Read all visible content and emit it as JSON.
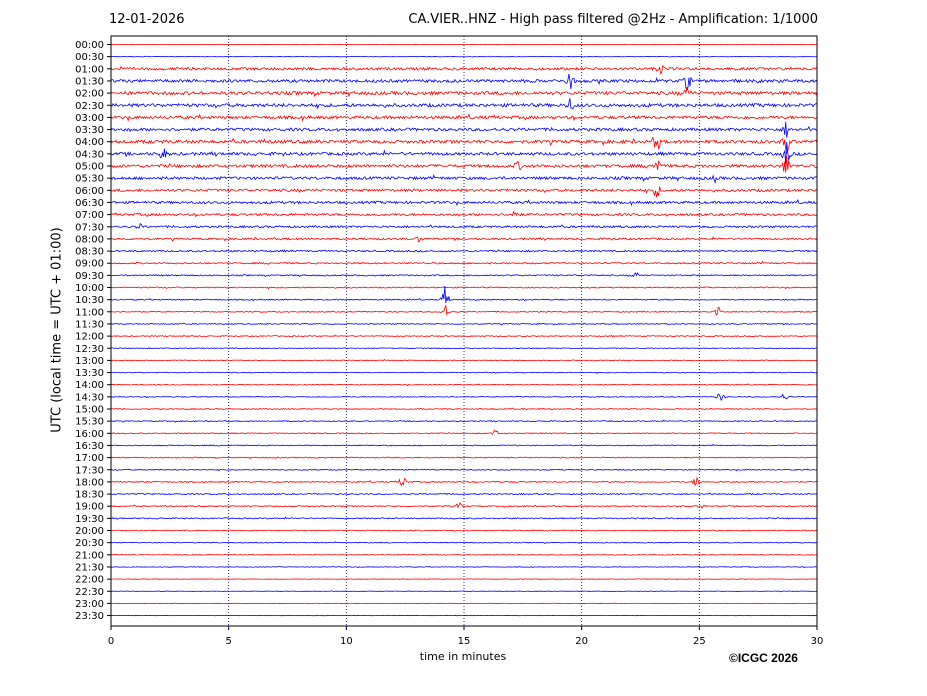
{
  "header": {
    "date": "12-01-2026",
    "title": "CA.VIER..HNZ - High pass filtered @2Hz - Amplification: 1/1000"
  },
  "footer": {
    "copyright": "©ICGC 2026"
  },
  "colors": {
    "red": "#ff0000",
    "blue": "#0000ff",
    "grid": "#000080"
  },
  "chart_data": {
    "type": "line",
    "title": "CA.VIER..HNZ - High pass filtered @2Hz - Amplification: 1/1000",
    "xlabel": "time in minutes",
    "ylabel": "UTC (local time = UTC + 01:00)",
    "xlim": [
      0,
      30
    ],
    "x_ticks": [
      0,
      5,
      10,
      15,
      20,
      25,
      30
    ],
    "grid": "vertical dotted at 5-minute ticks",
    "trace_colors": [
      "red",
      "blue"
    ],
    "rows": [
      "00:00",
      "00:30",
      "01:00",
      "01:30",
      "02:00",
      "02:30",
      "03:00",
      "03:30",
      "04:00",
      "04:30",
      "05:00",
      "05:30",
      "06:00",
      "06:30",
      "07:00",
      "07:30",
      "08:00",
      "08:30",
      "09:00",
      "09:30",
      "10:00",
      "10:30",
      "11:00",
      "11:30",
      "12:00",
      "12:30",
      "13:00",
      "13:30",
      "14:00",
      "14:30",
      "15:00",
      "15:30",
      "16:00",
      "16:30",
      "17:00",
      "17:30",
      "18:00",
      "18:30",
      "19:00",
      "19:30",
      "20:00",
      "20:30",
      "21:00",
      "21:30",
      "22:00",
      "22:30",
      "23:00",
      "23:30"
    ],
    "noise_level": [
      0.1,
      0.15,
      0.8,
      0.9,
      1.0,
      1.0,
      0.9,
      0.9,
      0.95,
      0.9,
      0.9,
      0.85,
      0.8,
      0.75,
      0.7,
      0.6,
      0.55,
      0.5,
      0.45,
      0.4,
      0.35,
      0.35,
      0.3,
      0.3,
      0.3,
      0.25,
      0.25,
      0.25,
      0.25,
      0.25,
      0.3,
      0.3,
      0.3,
      0.3,
      0.3,
      0.3,
      0.35,
      0.35,
      0.35,
      0.35,
      0.3,
      0.25,
      0.2,
      0.2,
      0.15,
      0.15,
      0.1,
      0.1
    ],
    "events": [
      {
        "row": "01:00",
        "minute": 23.4,
        "amp": 6
      },
      {
        "row": "01:30",
        "minute": 19.5,
        "amp": 12
      },
      {
        "row": "01:30",
        "minute": 24.5,
        "amp": 10
      },
      {
        "row": "02:00",
        "minute": 24.5,
        "amp": 8
      },
      {
        "row": "02:30",
        "minute": 19.5,
        "amp": 8
      },
      {
        "row": "03:30",
        "minute": 28.7,
        "amp": 10
      },
      {
        "row": "04:00",
        "minute": 28.7,
        "amp": 14
      },
      {
        "row": "04:00",
        "minute": 23.2,
        "amp": 10
      },
      {
        "row": "04:30",
        "minute": 2.2,
        "amp": 8
      },
      {
        "row": "04:30",
        "minute": 28.7,
        "amp": 14
      },
      {
        "row": "05:00",
        "minute": 28.7,
        "amp": 12
      },
      {
        "row": "05:00",
        "minute": 23.2,
        "amp": 10
      },
      {
        "row": "05:00",
        "minute": 17.3,
        "amp": 6
      },
      {
        "row": "05:30",
        "minute": 25.7,
        "amp": 5
      },
      {
        "row": "06:00",
        "minute": 23.2,
        "amp": 8
      },
      {
        "row": "07:00",
        "minute": 17.1,
        "amp": 7
      },
      {
        "row": "07:30",
        "minute": 1.2,
        "amp": 4
      },
      {
        "row": "08:00",
        "minute": 13.1,
        "amp": 4
      },
      {
        "row": "09:30",
        "minute": 22.3,
        "amp": 4
      },
      {
        "row": "10:30",
        "minute": 14.2,
        "amp": 10
      },
      {
        "row": "11:00",
        "minute": 14.2,
        "amp": 8
      },
      {
        "row": "11:00",
        "minute": 25.8,
        "amp": 7
      },
      {
        "row": "14:30",
        "minute": 25.9,
        "amp": 5
      },
      {
        "row": "14:30",
        "minute": 28.6,
        "amp": 4
      },
      {
        "row": "16:00",
        "minute": 16.3,
        "amp": 4
      },
      {
        "row": "18:00",
        "minute": 12.4,
        "amp": 6
      },
      {
        "row": "18:00",
        "minute": 24.9,
        "amp": 7
      },
      {
        "row": "19:00",
        "minute": 14.8,
        "amp": 4
      },
      {
        "row": "19:00",
        "minute": 25.1,
        "amp": 3
      }
    ]
  }
}
